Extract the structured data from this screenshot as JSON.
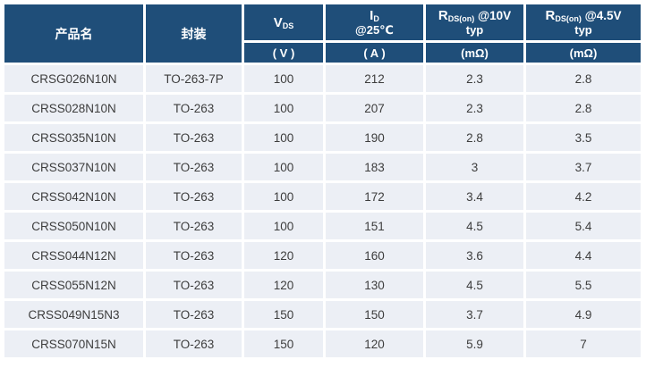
{
  "colors": {
    "header_bg": "#1F4E79",
    "header_text": "#FFFFFF",
    "row_bg": "#ECEFF5",
    "body_text": "#3D3D3D",
    "gap": "#FFFFFF"
  },
  "table": {
    "column_ids": [
      "product",
      "package",
      "vds",
      "id",
      "rds_10v",
      "rds_4v5"
    ],
    "header": {
      "product_label": "产品名",
      "package_label": "封装",
      "vds_symbol": "V",
      "vds_sub": "DS",
      "id_symbol": "I",
      "id_sub": "D",
      "id_cond": "@25℃",
      "rds10_symbol": "R",
      "rds10_sub": "DS(on)",
      "rds10_cond": " @10V",
      "rds10_line2": "typ",
      "rds45_symbol": "R",
      "rds45_sub": "DS(on)",
      "rds45_cond": " @4.5V",
      "rds45_line2": "typ",
      "unit_v": "( V )",
      "unit_a": "( A )",
      "unit_mohm_10v": "(mΩ)",
      "unit_mohm_4v5": "(mΩ)"
    },
    "rows": [
      [
        "CRSG026N10N",
        "TO-263-7P",
        "100",
        "212",
        "2.3",
        "2.8"
      ],
      [
        "CRSS028N10N",
        "TO-263",
        "100",
        "207",
        "2.3",
        "2.8"
      ],
      [
        "CRSS035N10N",
        "TO-263",
        "100",
        "190",
        "2.8",
        "3.5"
      ],
      [
        "CRSS037N10N",
        "TO-263",
        "100",
        "183",
        "3",
        "3.7"
      ],
      [
        "CRSS042N10N",
        "TO-263",
        "100",
        "172",
        "3.4",
        "4.2"
      ],
      [
        "CRSS050N10N",
        "TO-263",
        "100",
        "151",
        "4.5",
        "5.4"
      ],
      [
        "CRSS044N12N",
        "TO-263",
        "120",
        "160",
        "3.6",
        "4.4"
      ],
      [
        "CRSS055N12N",
        "TO-263",
        "120",
        "130",
        "4.5",
        "5.5"
      ],
      [
        "CRSS049N15N3",
        "TO-263",
        "150",
        "150",
        "3.7",
        "4.9"
      ],
      [
        "CRSS070N15N",
        "TO-263",
        "150",
        "120",
        "5.9",
        "7"
      ]
    ]
  }
}
